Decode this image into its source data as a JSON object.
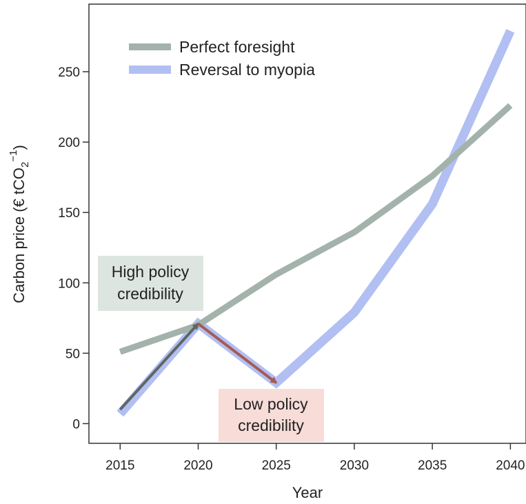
{
  "chart_data": {
    "type": "line",
    "title": "",
    "xlabel": "Year",
    "ylabel": {
      "prefix": "Carbon price (€ tCO",
      "sub": "2",
      "sup": "−1",
      "suffix": ")"
    },
    "xlim": [
      2013,
      2041
    ],
    "ylim": [
      -14,
      298
    ],
    "x_ticks": [
      2015,
      2020,
      2025,
      2030,
      2035,
      2040
    ],
    "y_ticks": [
      0,
      50,
      100,
      150,
      200,
      250
    ],
    "grid": false,
    "legend_position": "top-left",
    "series": [
      {
        "name": "Perfect foresight",
        "color": "#a3b3ab",
        "x": [
          2015,
          2020,
          2025,
          2030,
          2035,
          2040
        ],
        "y": [
          51,
          70,
          106,
          136,
          176,
          226
        ]
      },
      {
        "name": "Reversal to myopia",
        "color": "#b1bff2",
        "x": [
          2015,
          2020,
          2025,
          2030,
          2035,
          2040
        ],
        "y": [
          7,
          71,
          29,
          79,
          156,
          279
        ]
      }
    ],
    "annotations": [
      {
        "id": "high",
        "lines": [
          "High policy",
          "credibility"
        ],
        "bg_color": "#dde5e1",
        "arrow_color": "#5f6763",
        "arrow_from": [
          2015,
          10
        ],
        "arrow_to": [
          2020,
          71
        ]
      },
      {
        "id": "low",
        "lines": [
          "Low policy",
          "credibility"
        ],
        "bg_color": "#f7dcd8",
        "arrow_color": "#a85a52",
        "arrow_from": [
          2020,
          71
        ],
        "arrow_to": [
          2025,
          29
        ]
      }
    ]
  }
}
